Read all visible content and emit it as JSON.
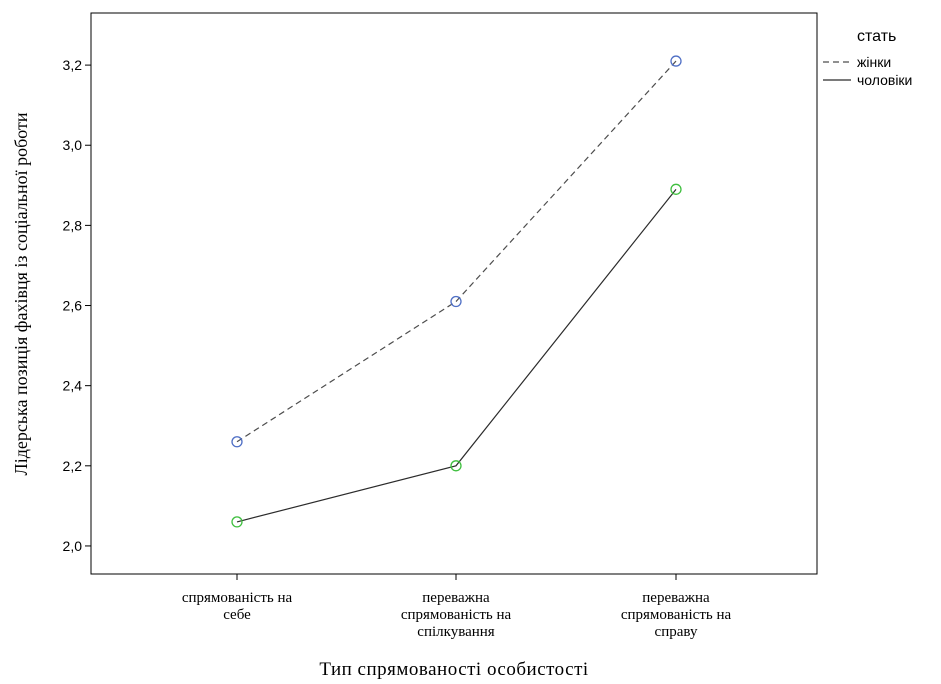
{
  "chart_data": {
    "type": "line",
    "xlabel": "Тип спрямованості особистості",
    "ylabel": "Лідерська позиція фахівця із соціальної роботи",
    "categories": [
      [
        "спрямованість на",
        "себе"
      ],
      [
        "переважна",
        "спрямованість на",
        "спілкування"
      ],
      [
        "переважна",
        "спрямованість на",
        "справу"
      ]
    ],
    "ylim": [
      1.93,
      3.33
    ],
    "yticks": [
      "2,0",
      "2,2",
      "2,4",
      "2,6",
      "2,8",
      "3,0",
      "3,2"
    ],
    "ytick_values": [
      2.0,
      2.2,
      2.4,
      2.6,
      2.8,
      3.0,
      3.2
    ],
    "grid": false,
    "legend": {
      "title": "стать",
      "position": "top-right"
    },
    "series": [
      {
        "name": "жінки",
        "values": [
          2.26,
          2.61,
          3.21
        ],
        "line_style": "dashed",
        "line_color": "#4d4d4d",
        "marker_color": "#4f6fc5"
      },
      {
        "name": "чоловіки",
        "values": [
          2.06,
          2.2,
          2.89
        ],
        "line_style": "solid",
        "line_color": "#2b2b2b",
        "marker_color": "#3fbf3f"
      }
    ]
  }
}
